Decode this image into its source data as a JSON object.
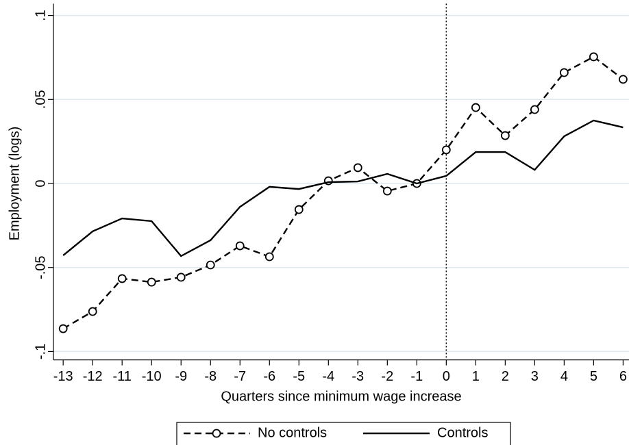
{
  "chart_data": {
    "type": "line",
    "x_label": "Quarters since minimum wage increase",
    "y_label": "Employment (logs)",
    "x": [
      -13,
      -12,
      -11,
      -10,
      -9,
      -8,
      -7,
      -6,
      -5,
      -4,
      -3,
      -2,
      -1,
      0,
      1,
      2,
      3,
      4,
      5,
      6
    ],
    "series": [
      {
        "name": "No controls",
        "color": "#000000",
        "linestyle": "dashed",
        "marker": "circle",
        "values": [
          -0.0864,
          -0.0762,
          -0.0566,
          -0.0587,
          -0.0558,
          -0.0485,
          -0.0371,
          -0.0436,
          -0.0155,
          0.0016,
          0.0094,
          -0.0045,
          0,
          0.02,
          0.0452,
          0.0285,
          0.044,
          0.066,
          0.0754,
          0.062
        ]
      },
      {
        "name": "Controls",
        "color": "#000000",
        "linestyle": "solid",
        "marker": "none",
        "values": [
          -0.0428,
          -0.0285,
          -0.0208,
          -0.0224,
          -0.0432,
          -0.0338,
          -0.0139,
          -0.002,
          -0.0033,
          0.0008,
          0.0012,
          0.0057,
          0,
          0.0045,
          0.0187,
          0.0187,
          0.0081,
          0.0281,
          0.0375,
          0.0334
        ]
      }
    ],
    "xlim": [
      -13.33,
      6.2
    ],
    "ylim": [
      -0.105,
      0.107
    ],
    "xticks": [
      -13,
      -12,
      -11,
      -10,
      -9,
      -8,
      -7,
      -6,
      -5,
      -4,
      -3,
      -2,
      -1,
      0,
      1,
      2,
      3,
      4,
      5,
      6
    ],
    "yticks": [
      {
        "value": -0.1,
        "label": "-.1"
      },
      {
        "value": -0.05,
        "label": "-.05"
      },
      0,
      {
        "value": 0.05,
        "label": ".05"
      },
      {
        "value": 0.1,
        "label": ".1"
      }
    ],
    "grid": true,
    "grid_color": "#dce8ec",
    "vline": 0,
    "legend": "bottom"
  }
}
